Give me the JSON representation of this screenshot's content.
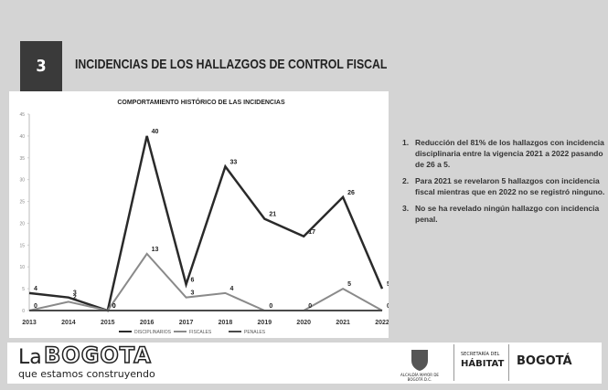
{
  "header": {
    "number": "3",
    "title": "INCIDENCIAS DE LOS HALLAZGOS DE CONTROL FISCAL"
  },
  "chart_data": {
    "type": "line",
    "title": "COMPORTAMIENTO HISTÓRICO DE LAS INCIDENCIAS",
    "categories": [
      "2013",
      "2014",
      "2015",
      "2016",
      "2017",
      "2018",
      "2019",
      "2020",
      "2021",
      "2022"
    ],
    "series": [
      {
        "name": "DISCIPLINARIOS",
        "color": "#2a2a2a",
        "labels": true,
        "values": [
          4,
          3,
          0,
          40,
          6,
          33,
          21,
          17,
          26,
          5
        ]
      },
      {
        "name": "FISCALES",
        "color": "#8a8a8a",
        "labels": true,
        "values": [
          0,
          2,
          0,
          13,
          3,
          4,
          0,
          0,
          5,
          0
        ]
      },
      {
        "name": "PENALES",
        "color": "#4a4a4a",
        "labels": false,
        "values": [
          0,
          0,
          0,
          0,
          0,
          0,
          0,
          0,
          0,
          0
        ]
      }
    ],
    "ylim": [
      0,
      45
    ],
    "yticks": [
      0,
      5,
      10,
      15,
      20,
      25,
      30,
      35,
      40,
      45
    ],
    "grid": false,
    "legend": "bottom"
  },
  "notes": [
    {
      "number": "1.",
      "text": "Reducción del 81% de los hallazgos con incidencia disciplinaria entre la vigencia 2021 a 2022 pasando de 26 a 5."
    },
    {
      "number": "2.",
      "text": "Para 2021 se revelaron 5 hallazgos con incidencia fiscal mientras que en 2022 no se registró ninguno."
    },
    {
      "number": "3.",
      "text": "No se ha revelado ningún hallazgo con incidencia penal."
    }
  ],
  "footer": {
    "brand_prefix": "La",
    "brand": "BOGOTA",
    "slogan": "que estamos construyendo",
    "crest_text": "ALCALDÍA MAYOR DE BOGOTÁ D.C.",
    "secretaria": "SECRETARÍA DEL",
    "habitat": "HÁBITAT",
    "city": "BOGOTÁ"
  }
}
